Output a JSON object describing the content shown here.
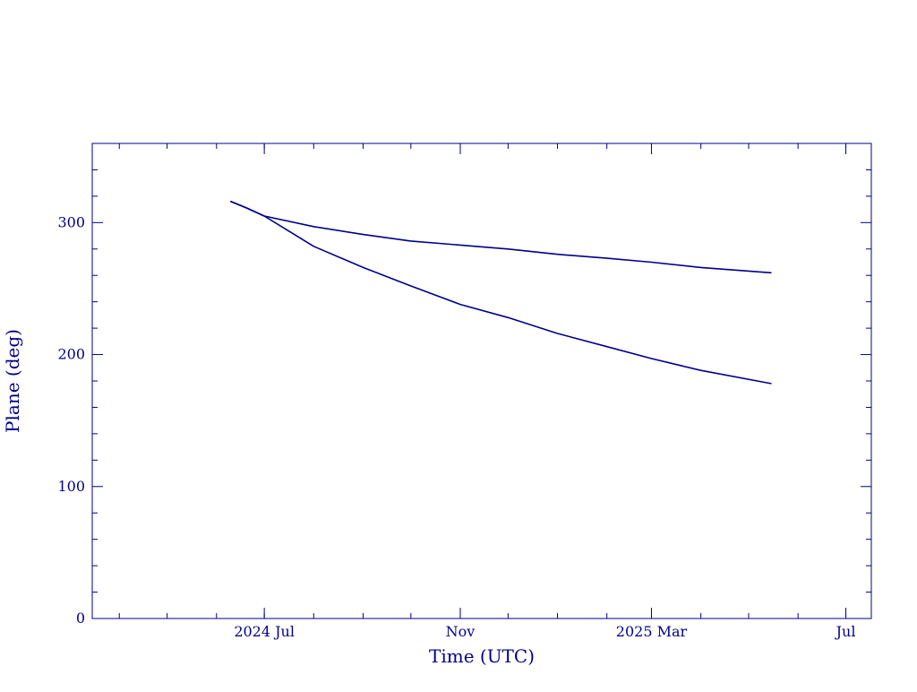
{
  "colors": {
    "ink": "#00008b",
    "background": "#ffffff"
  },
  "chart_data": {
    "type": "line",
    "xlabel": "Time (UTC)",
    "ylabel": "Plane (deg)",
    "x_axis_type": "date",
    "xlim": [
      "2024-03-15",
      "2025-07-17"
    ],
    "ylim": [
      0,
      360
    ],
    "x_ticks": [
      {
        "date": "2024-07-01",
        "label": "2024 Jul"
      },
      {
        "date": "2024-11-01",
        "label": "Nov"
      },
      {
        "date": "2025-03-01",
        "label": "2025 Mar"
      },
      {
        "date": "2025-07-01",
        "label": "Jul"
      }
    ],
    "y_ticks": [
      0,
      100,
      200,
      300
    ],
    "grid": false,
    "legend": "none",
    "series": [
      {
        "color": "#00008b",
        "points": [
          {
            "x": "2024-06-10",
            "y": 316
          },
          {
            "x": "2024-06-20",
            "y": 311
          },
          {
            "x": "2024-07-01",
            "y": 305
          },
          {
            "x": "2024-08-01",
            "y": 297
          },
          {
            "x": "2024-09-01",
            "y": 291
          },
          {
            "x": "2024-10-01",
            "y": 286
          },
          {
            "x": "2024-11-01",
            "y": 283
          },
          {
            "x": "2024-12-01",
            "y": 280
          },
          {
            "x": "2025-01-01",
            "y": 276
          },
          {
            "x": "2025-02-01",
            "y": 273
          },
          {
            "x": "2025-03-01",
            "y": 270
          },
          {
            "x": "2025-04-01",
            "y": 266
          },
          {
            "x": "2025-05-15",
            "y": 262
          }
        ]
      },
      {
        "color": "#00008b",
        "points": [
          {
            "x": "2024-06-10",
            "y": 316
          },
          {
            "x": "2024-06-20",
            "y": 311
          },
          {
            "x": "2024-07-01",
            "y": 305
          },
          {
            "x": "2024-08-01",
            "y": 282
          },
          {
            "x": "2024-09-01",
            "y": 266
          },
          {
            "x": "2024-10-01",
            "y": 252
          },
          {
            "x": "2024-11-01",
            "y": 238
          },
          {
            "x": "2024-12-01",
            "y": 228
          },
          {
            "x": "2025-01-01",
            "y": 216
          },
          {
            "x": "2025-02-01",
            "y": 206
          },
          {
            "x": "2025-03-01",
            "y": 197
          },
          {
            "x": "2025-04-01",
            "y": 188
          },
          {
            "x": "2025-05-15",
            "y": 178
          }
        ]
      }
    ]
  }
}
